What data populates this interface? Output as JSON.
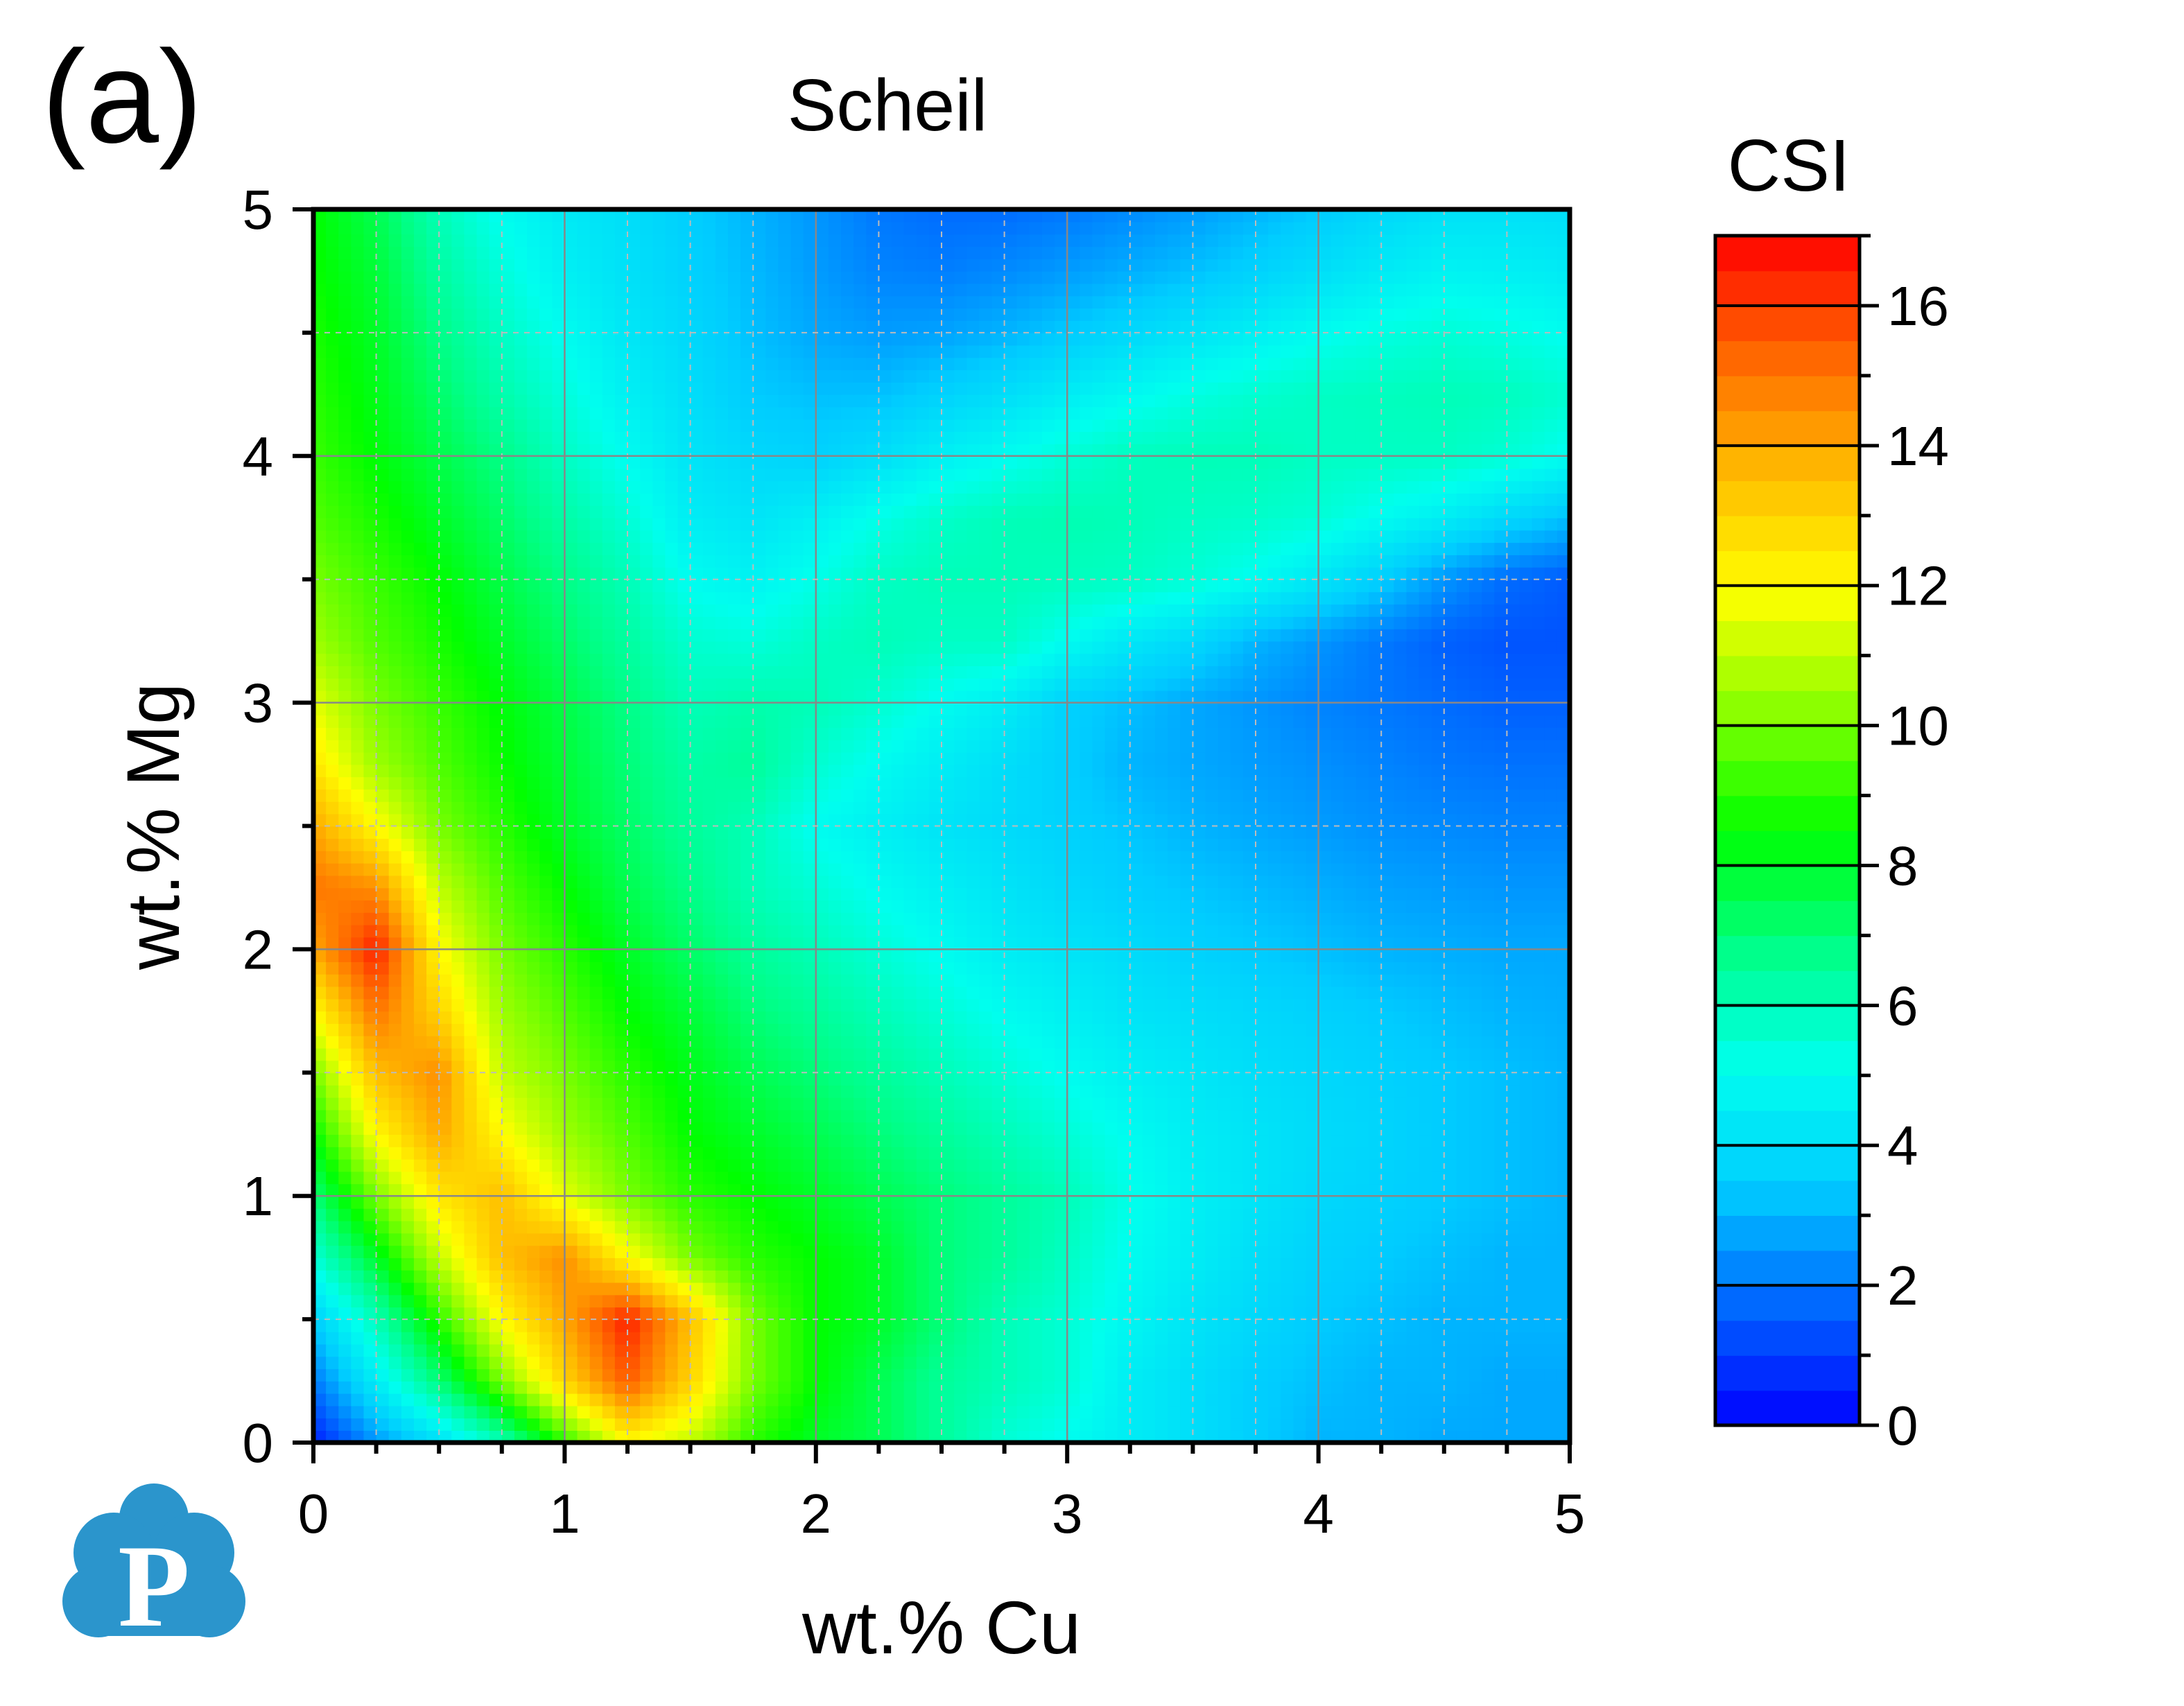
{
  "panel_label": "(a)",
  "chart_data": {
    "type": "heatmap",
    "title": "Scheil",
    "xlabel": "wt.% Cu",
    "ylabel": "wt.% Mg",
    "xlim": [
      0,
      5
    ],
    "ylim": [
      0,
      5
    ],
    "xticks": [
      "0",
      "1",
      "2",
      "3",
      "4",
      "5"
    ],
    "yticks": [
      "0",
      "1",
      "2",
      "3",
      "4",
      "5"
    ],
    "grid": true,
    "colorbar": {
      "title": "CSI",
      "range": [
        0,
        17
      ],
      "ticks": [
        "0",
        "2",
        "4",
        "6",
        "8",
        "10",
        "12",
        "14",
        "16"
      ],
      "colormap": [
        "#0000ff",
        "#0066ff",
        "#00ccff",
        "#00ffee",
        "#00ff88",
        "#00ff00",
        "#88ff00",
        "#ffff00",
        "#ffbb00",
        "#ff6600",
        "#ff0000"
      ]
    },
    "x": [
      0,
      0.25,
      0.5,
      0.75,
      1,
      1.25,
      1.5,
      1.75,
      2,
      2.25,
      2.5,
      2.75,
      3,
      3.25,
      3.5,
      3.75,
      4,
      4.25,
      4.5,
      4.75,
      5
    ],
    "y": [
      0,
      0.25,
      0.5,
      0.75,
      1,
      1.25,
      1.5,
      1.75,
      2,
      2.25,
      2.5,
      2.75,
      3,
      3.25,
      3.5,
      3.75,
      4,
      4.25,
      4.5,
      4.75,
      5
    ],
    "z": [
      [
        0.5,
        2.5,
        4,
        6,
        9,
        12,
        11,
        9,
        8,
        7.5,
        6.5,
        5.5,
        5,
        4.5,
        4,
        3.5,
        3,
        3,
        2.8,
        2.8,
        2.8
      ],
      [
        2,
        4.5,
        7,
        10,
        13,
        15.5,
        13,
        10,
        8.5,
        7.5,
        6.5,
        6,
        5.5,
        4.5,
        4,
        3.5,
        3.2,
        3,
        3,
        2.8,
        2.8
      ],
      [
        3.5,
        6,
        9,
        12,
        14,
        16.5,
        13.5,
        10,
        8.5,
        8,
        7,
        6,
        5.5,
        4.8,
        4.2,
        3.8,
        3.4,
        3.2,
        3,
        3,
        3
      ],
      [
        5.5,
        8,
        11,
        13.5,
        14.5,
        12,
        10,
        9,
        8.5,
        8,
        7,
        6.5,
        5.8,
        5,
        4.5,
        4,
        3.6,
        3.4,
        3.2,
        3,
        3
      ],
      [
        7,
        10,
        12.5,
        13.5,
        11.5,
        10,
        9,
        8.5,
        8,
        7.5,
        7,
        6.5,
        6,
        5.2,
        4.6,
        4.2,
        3.8,
        3.6,
        3.4,
        3.2,
        3
      ],
      [
        8.5,
        12,
        14,
        12,
        10.5,
        9.5,
        8.5,
        8,
        7.5,
        7,
        6.5,
        6,
        5.5,
        5,
        4.5,
        4.2,
        3.9,
        3.7,
        3.4,
        3.2,
        3
      ],
      [
        10,
        13.5,
        14.5,
        11,
        10,
        9,
        8.2,
        7.5,
        7,
        6.5,
        6,
        5.5,
        5,
        4.6,
        4.3,
        4,
        3.8,
        3.6,
        3.4,
        3.2,
        3
      ],
      [
        12,
        15,
        13,
        10.5,
        9.5,
        8.5,
        7.8,
        7,
        6.5,
        6,
        5.5,
        5,
        4.6,
        4.2,
        4,
        3.8,
        3.6,
        3.4,
        3.2,
        3,
        2.9
      ],
      [
        14,
        16.5,
        12,
        10,
        9,
        8,
        7.2,
        6.5,
        6,
        5.5,
        5,
        4.5,
        4.2,
        3.9,
        3.6,
        3.4,
        3.2,
        3,
        2.9,
        2.8,
        2.8
      ],
      [
        15,
        14.5,
        11,
        9.5,
        8.5,
        7.5,
        6.8,
        6,
        5.5,
        5,
        4.6,
        4.2,
        3.8,
        3.5,
        3.3,
        3.1,
        2.9,
        2.7,
        2.6,
        2.5,
        2.5
      ],
      [
        14,
        12,
        10,
        9,
        8,
        7.2,
        6.5,
        6,
        5,
        4.6,
        4.2,
        3.9,
        3.6,
        3.3,
        3,
        2.8,
        2.6,
        2.4,
        2.3,
        2.2,
        2.2
      ],
      [
        12.5,
        10.5,
        9.5,
        8.6,
        7.8,
        7,
        6.3,
        6.5,
        5.6,
        5,
        4.5,
        4,
        3.5,
        3,
        2.8,
        2.6,
        2.4,
        2.2,
        2,
        1.9,
        1.9
      ],
      [
        11.5,
        10,
        9.2,
        8.4,
        7.6,
        6.8,
        6,
        6.2,
        6,
        5.6,
        5,
        4.5,
        3.6,
        3.2,
        2.8,
        2.5,
        2.2,
        2,
        1.8,
        1.6,
        1.6
      ],
      [
        10.5,
        9.5,
        8.8,
        8,
        7.2,
        6.4,
        5.6,
        5.4,
        5.8,
        6,
        5.8,
        5.8,
        5,
        4.3,
        3.8,
        3,
        2.5,
        2,
        1.6,
        1.4,
        1.4
      ],
      [
        10,
        9.2,
        8.5,
        7.6,
        6.8,
        6,
        5,
        4.7,
        5.2,
        5.8,
        6,
        6,
        5.9,
        5.8,
        5.5,
        5,
        4.3,
        3.5,
        2.5,
        1.8,
        1.5
      ],
      [
        9.5,
        8.8,
        8,
        7.2,
        6.3,
        5.5,
        4.5,
        4.2,
        4.6,
        5.2,
        5.7,
        6,
        6.1,
        6,
        5.8,
        5.7,
        5.5,
        5,
        4.5,
        3.8,
        3.2
      ],
      [
        9.2,
        8.4,
        7.6,
        6.8,
        5.8,
        5,
        4.2,
        3.8,
        3.6,
        4,
        4.6,
        5,
        5.5,
        5.9,
        6,
        6,
        5.8,
        5.8,
        5.8,
        5.5,
        5
      ],
      [
        9,
        8.2,
        7.2,
        6.2,
        5.4,
        4.6,
        4,
        3.4,
        3.2,
        3.2,
        3.6,
        4,
        4.5,
        4.9,
        5.3,
        5.6,
        5.8,
        5.9,
        6,
        5.9,
        5.6
      ],
      [
        8.8,
        8,
        6.8,
        5.8,
        5,
        4.3,
        3.8,
        3.2,
        2.8,
        2.6,
        2.7,
        3,
        3.4,
        3.8,
        4.2,
        4.6,
        5,
        5.3,
        5.5,
        5.3,
        5
      ],
      [
        8.6,
        7.8,
        6.4,
        5.4,
        4.6,
        4.1,
        3.6,
        3.1,
        2.6,
        2.2,
        2.1,
        2.3,
        2.6,
        2.9,
        3.2,
        3.6,
        4,
        4.4,
        4.7,
        4.6,
        4.4
      ],
      [
        8.5,
        7.5,
        6,
        5,
        4.4,
        4,
        3.5,
        3,
        2.5,
        2,
        1.8,
        1.8,
        2,
        2.3,
        2.6,
        3,
        3.4,
        3.8,
        4.1,
        4.1,
        4
      ]
    ]
  }
}
